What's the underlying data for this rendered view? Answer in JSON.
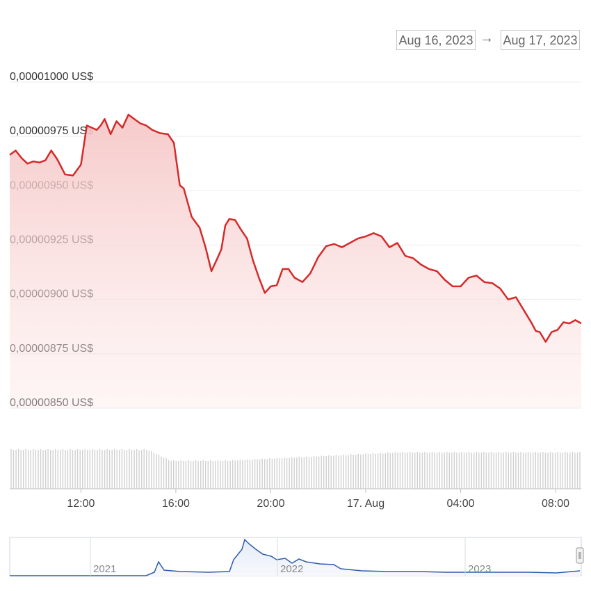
{
  "range_selector": {
    "from": "Aug 16, 2023",
    "arrow": "→",
    "to": "Aug 17, 2023"
  },
  "colors": {
    "line": "#d42a2a",
    "fill_top": "#f7cccc",
    "volume": "#d0d0d0",
    "navigator_line": "#2e5caa",
    "grid": "#ececec"
  },
  "chart_data": {
    "type": "line",
    "title": "",
    "xlabel": "",
    "ylabel": "",
    "y_unit": "US$",
    "ylim": [
      8.5e-06,
      1e-05
    ],
    "yticks": [
      "0,00001000 US$",
      "0,00000975 US$",
      "0,00000950 US$",
      "0,00000925 US$",
      "0,00000900 US$",
      "0,00000875 US$",
      "0,00000850 US$"
    ],
    "xlim": [
      "2023-08-16 09:00",
      "2023-08-17 09:05"
    ],
    "xticks": [
      "12:00",
      "16:00",
      "20:00",
      "17. Aug",
      "04:00",
      "08:00"
    ],
    "price_x": [
      "2023-08-16 09:00",
      "2023-08-16 09:15",
      "2023-08-16 09:30",
      "2023-08-16 09:45",
      "2023-08-16 10:00",
      "2023-08-16 10:15",
      "2023-08-16 10:30",
      "2023-08-16 10:45",
      "2023-08-16 11:00",
      "2023-08-16 11:20",
      "2023-08-16 11:40",
      "2023-08-16 12:00",
      "2023-08-16 12:15",
      "2023-08-16 12:40",
      "2023-08-16 12:50",
      "2023-08-16 13:00",
      "2023-08-16 13:15",
      "2023-08-16 13:30",
      "2023-08-16 13:45",
      "2023-08-16 14:00",
      "2023-08-16 14:15",
      "2023-08-16 14:30",
      "2023-08-16 14:45",
      "2023-08-16 15:00",
      "2023-08-16 15:20",
      "2023-08-16 15:40",
      "2023-08-16 15:55",
      "2023-08-16 16:10",
      "2023-08-16 16:20",
      "2023-08-16 16:40",
      "2023-08-16 17:00",
      "2023-08-16 17:15",
      "2023-08-16 17:30",
      "2023-08-16 17:45",
      "2023-08-16 17:55",
      "2023-08-16 18:05",
      "2023-08-16 18:15",
      "2023-08-16 18:30",
      "2023-08-16 18:45",
      "2023-08-16 19:00",
      "2023-08-16 19:15",
      "2023-08-16 19:30",
      "2023-08-16 19:45",
      "2023-08-16 20:00",
      "2023-08-16 20:15",
      "2023-08-16 20:30",
      "2023-08-16 20:45",
      "2023-08-16 21:00",
      "2023-08-16 21:20",
      "2023-08-16 21:40",
      "2023-08-16 22:00",
      "2023-08-16 22:20",
      "2023-08-16 22:40",
      "2023-08-16 23:00",
      "2023-08-16 23:20",
      "2023-08-16 23:40",
      "2023-08-17 00:00",
      "2023-08-17 00:20",
      "2023-08-17 00:40",
      "2023-08-17 01:00",
      "2023-08-17 01:20",
      "2023-08-17 01:40",
      "2023-08-17 02:00",
      "2023-08-17 02:20",
      "2023-08-17 02:40",
      "2023-08-17 03:00",
      "2023-08-17 03:20",
      "2023-08-17 03:40",
      "2023-08-17 04:00",
      "2023-08-17 04:20",
      "2023-08-17 04:40",
      "2023-08-17 05:00",
      "2023-08-17 05:20",
      "2023-08-17 05:40",
      "2023-08-17 06:00",
      "2023-08-17 06:20",
      "2023-08-17 06:40",
      "2023-08-17 07:00",
      "2023-08-17 07:10",
      "2023-08-17 07:20",
      "2023-08-17 07:35",
      "2023-08-17 07:50",
      "2023-08-17 08:05",
      "2023-08-17 08:20",
      "2023-08-17 08:35",
      "2023-08-17 08:50",
      "2023-08-17 09:05"
    ],
    "price_y": [
      9.665,
      9.685,
      9.65,
      9.625,
      9.635,
      9.63,
      9.64,
      9.685,
      9.645,
      9.575,
      9.57,
      9.62,
      9.8,
      9.78,
      9.8,
      9.83,
      9.76,
      9.82,
      9.79,
      9.85,
      9.83,
      9.81,
      9.8,
      9.78,
      9.765,
      9.76,
      9.72,
      9.525,
      9.51,
      9.38,
      9.33,
      9.24,
      9.13,
      9.19,
      9.23,
      9.34,
      9.37,
      9.365,
      9.32,
      9.28,
      9.18,
      9.1,
      9.03,
      9.06,
      9.065,
      9.14,
      9.14,
      9.1,
      9.08,
      9.12,
      9.195,
      9.245,
      9.255,
      9.24,
      9.26,
      9.28,
      9.29,
      9.305,
      9.29,
      9.24,
      9.26,
      9.2,
      9.19,
      9.16,
      9.14,
      9.13,
      9.09,
      9.06,
      9.06,
      9.1,
      9.11,
      9.08,
      9.075,
      9.05,
      9.0,
      9.01,
      8.95,
      8.89,
      8.855,
      8.85,
      8.805,
      8.85,
      8.86,
      8.895,
      8.89,
      8.905,
      8.89
    ],
    "y_scale_note": "",
    "volume": "relative bars under price; high 09:00-15:00, dips ~16:00, recovers gradually to 09:00",
    "navigator": {
      "labels": [
        "2021",
        "2022",
        "2023"
      ]
    }
  }
}
